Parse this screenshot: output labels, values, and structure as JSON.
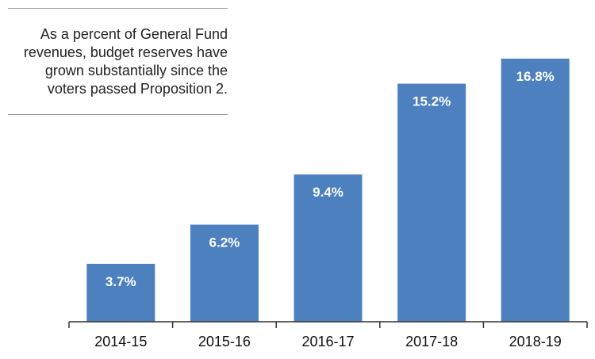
{
  "annotation": {
    "text": "As a percent of General Fund revenues, budget reserves have grown substantially since the voters passed Proposition 2."
  },
  "colors": {
    "bar": "#4d80bf",
    "axis": "#333333",
    "bar_label": "#ffffff"
  },
  "chart_data": {
    "type": "bar",
    "title": "",
    "xlabel": "",
    "ylabel": "",
    "categories": [
      "2014-15",
      "2015-16",
      "2016-17",
      "2017-18",
      "2018-19"
    ],
    "values": [
      3.7,
      6.2,
      9.4,
      15.2,
      16.8
    ],
    "data_labels": [
      "3.7%",
      "6.2%",
      "9.4%",
      "15.2%",
      "16.8%"
    ],
    "ylim": [
      0,
      18
    ],
    "grid": false,
    "legend": "none"
  }
}
